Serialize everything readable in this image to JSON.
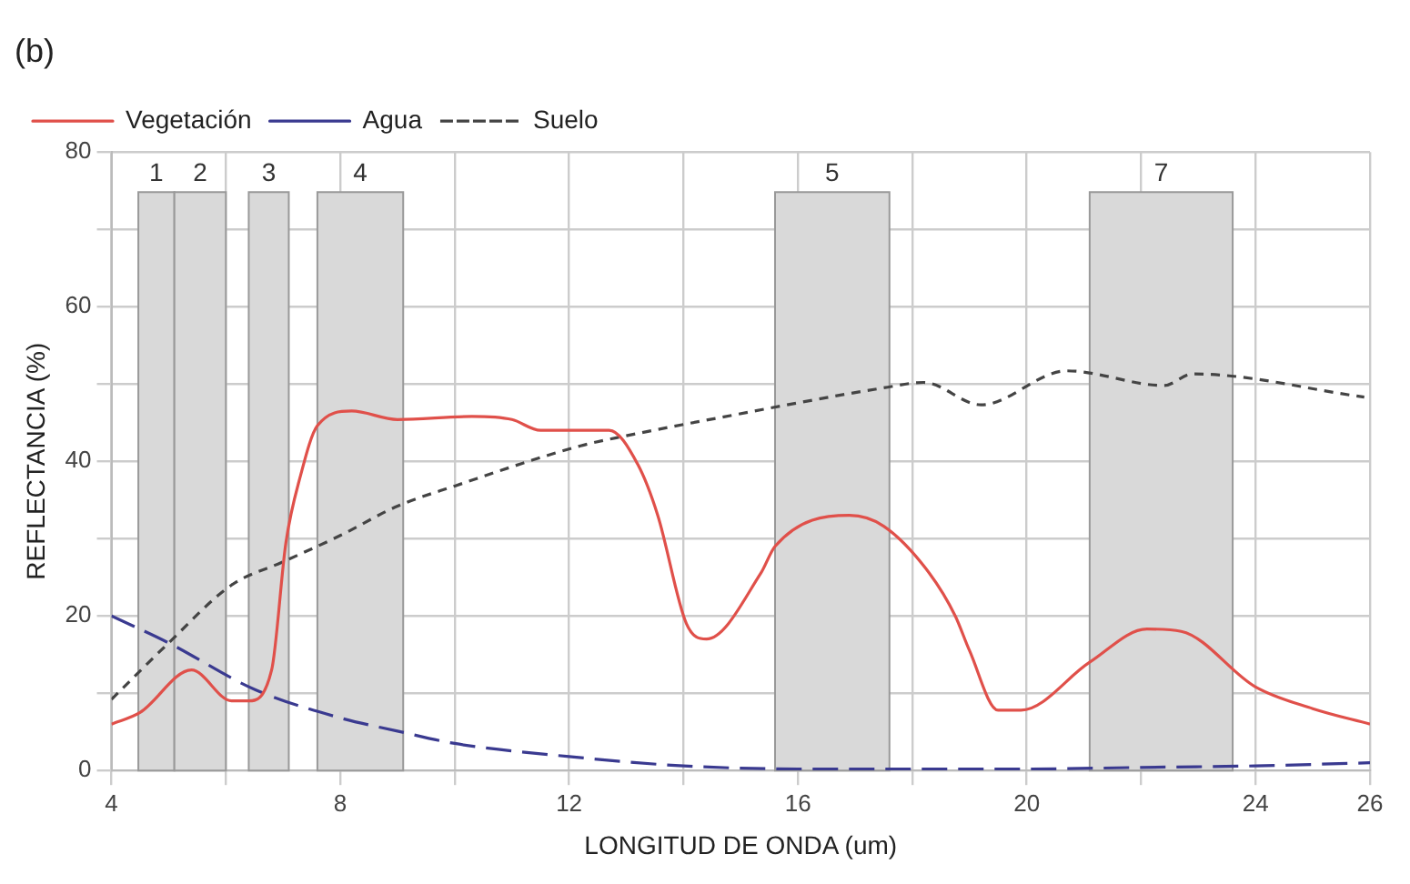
{
  "chart_data": {
    "type": "line",
    "title": "(b)",
    "xlabel": "LONGITUD DE ONDA (um)",
    "ylabel": "REFLECTANCIA (%)",
    "xlim": [
      4,
      26
    ],
    "xticks": [
      4,
      {
        "value": 6,
        "label": null
      },
      8,
      {
        "value": 10,
        "label": null
      },
      12,
      {
        "value": 14,
        "label": null
      },
      16,
      {
        "value": 18,
        "label": null
      },
      20,
      {
        "value": 22,
        "label": null
      },
      24,
      26
    ],
    "ylim": [
      0,
      80
    ],
    "yticks": [
      0,
      {
        "value": 10,
        "label": null
      },
      20,
      {
        "value": 30,
        "label": null
      },
      40,
      {
        "value": 50,
        "label": null
      },
      60,
      {
        "value": 70,
        "label": null
      },
      80
    ],
    "grid": true,
    "legend": "top left",
    "marker": "none",
    "series": [
      {
        "name": "Vegetación",
        "color": "#e0504a",
        "line_style": "solid",
        "x": [
          4,
          4.5,
          5.4,
          6.1,
          6.4,
          6.8,
          7.05,
          7.3,
          7.6,
          8.2,
          9,
          10.3,
          11,
          11.5,
          12.7,
          13.2,
          13.55,
          14.05,
          14.4,
          15.35,
          15.6,
          16.9,
          17.5,
          18.3,
          18.75,
          19,
          19.5,
          19.9,
          21.1,
          22.1,
          22.7,
          24,
          25,
          26
        ],
        "values": [
          6,
          7.5,
          13,
          9,
          9,
          13,
          29.5,
          38,
          44.6,
          46.5,
          45.4,
          45.8,
          45.4,
          44,
          44,
          39.6,
          33,
          19,
          17,
          25.5,
          29,
          33,
          31.6,
          25.5,
          20,
          15.5,
          7.8,
          7.8,
          14,
          18.3,
          18,
          10.8,
          8,
          6
        ]
      },
      {
        "name": "Agua",
        "color": "#3a3a90",
        "line_style": "dashed",
        "x": [
          4,
          5,
          6.5,
          8,
          9,
          10,
          12,
          14,
          16,
          18,
          20,
          22,
          24,
          26
        ],
        "values": [
          20,
          16.5,
          10.5,
          6.8,
          5.1,
          3.5,
          1.8,
          0.6,
          0.2,
          0.2,
          0.2,
          0.4,
          0.6,
          1
        ]
      },
      {
        "name": "Suelo",
        "color": "#444444",
        "line_style": "dotted",
        "x": [
          4,
          5,
          6.1,
          7,
          8,
          9,
          10,
          12.2,
          13,
          14.6,
          17.5,
          18.2,
          19.2,
          20.7,
          22.4,
          22.9,
          25.9
        ],
        "values": [
          9.2,
          16.5,
          24,
          27,
          30.4,
          34.2,
          36.8,
          42,
          43.3,
          45.6,
          49.5,
          50.2,
          47.3,
          51.7,
          49.8,
          51.3,
          48.3
        ]
      }
    ],
    "bands": [
      {
        "axis": "x",
        "from": 4.47,
        "to": 5.1,
        "label": "1",
        "color": "#d9d9d9"
      },
      {
        "axis": "x",
        "from": 5.1,
        "to": 6,
        "label": "2",
        "color": "#d9d9d9"
      },
      {
        "axis": "x",
        "from": 6.4,
        "to": 7.1,
        "label": "3",
        "color": "#d9d9d9"
      },
      {
        "axis": "x",
        "from": 7.6,
        "to": 9.1,
        "label": "4",
        "color": "#d9d9d9"
      },
      {
        "axis": "x",
        "from": 15.6,
        "to": 17.6,
        "label": "5",
        "color": "#d9d9d9"
      },
      {
        "axis": "x",
        "from": 21.1,
        "to": 23.6,
        "label": "7",
        "color": "#d9d9d9"
      }
    ]
  }
}
